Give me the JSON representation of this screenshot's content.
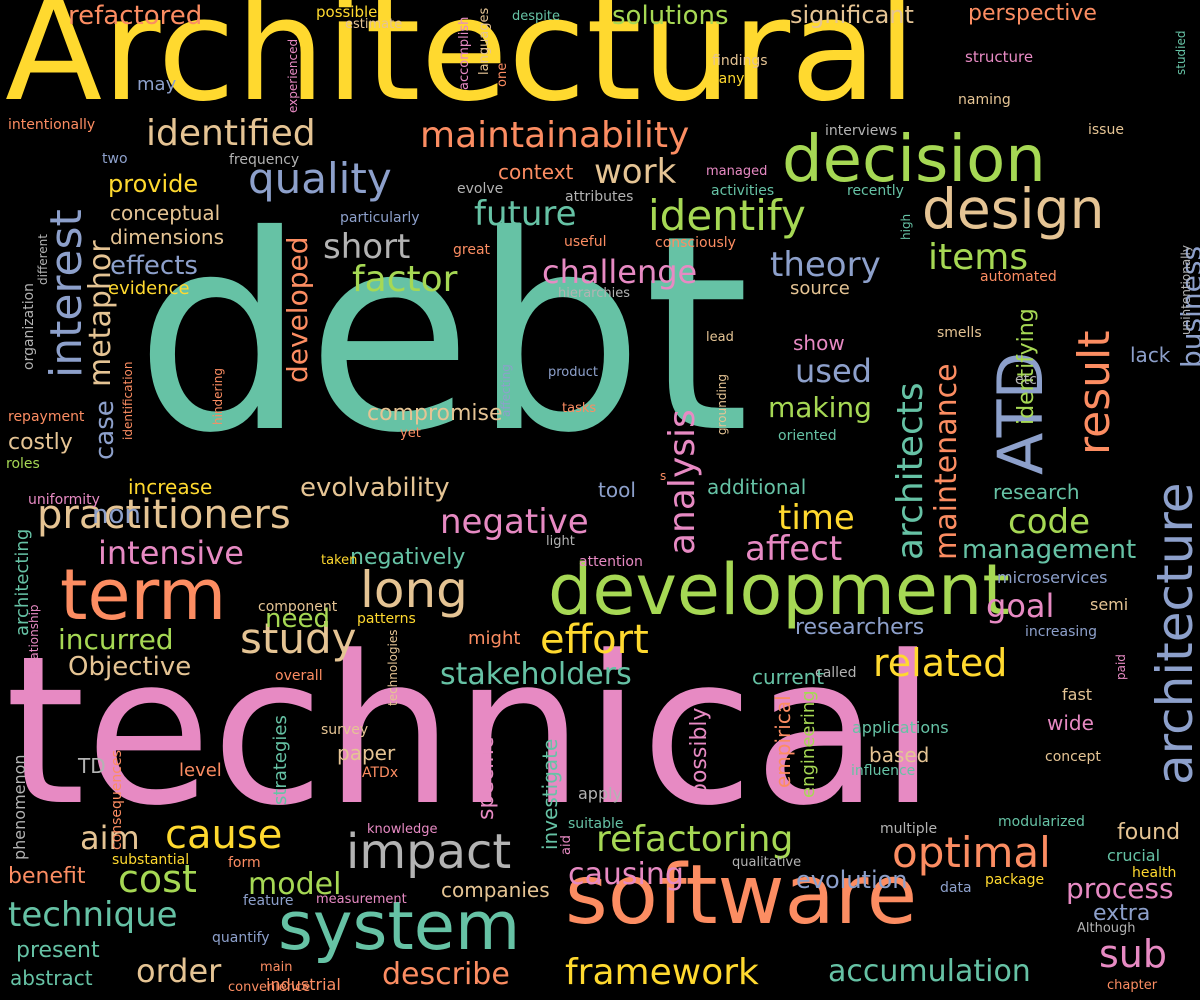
{
  "palette": {
    "teal": "#66c2a5",
    "orange": "#fc8d62",
    "blue": "#8da0cb",
    "pink": "#e78ac3",
    "green": "#a6d854",
    "yellow": "#ffd92f",
    "tan": "#e5c494",
    "gray": "#b3b3b3",
    "background": "#000000"
  },
  "words": [
    {
      "text": "debt",
      "color": "teal"
    },
    {
      "text": "technical",
      "color": "pink"
    },
    {
      "text": "Architectural",
      "color": "yellow"
    },
    {
      "text": "software",
      "color": "orange"
    },
    {
      "text": "development",
      "color": "green"
    },
    {
      "text": "decision",
      "color": "green"
    },
    {
      "text": "system",
      "color": "teal"
    },
    {
      "text": "ATD",
      "color": "blue"
    },
    {
      "text": "architecture",
      "color": "blue"
    },
    {
      "text": "design",
      "color": "tan"
    },
    {
      "text": "term",
      "color": "orange"
    },
    {
      "text": "impact",
      "color": "gray"
    },
    {
      "text": "practitioners",
      "color": "tan"
    },
    {
      "text": "interest",
      "color": "blue"
    },
    {
      "text": "result",
      "color": "orange"
    },
    {
      "text": "identify",
      "color": "green"
    },
    {
      "text": "quality",
      "color": "blue"
    },
    {
      "text": "optimal",
      "color": "orange"
    },
    {
      "text": "long",
      "color": "tan"
    },
    {
      "text": "cost",
      "color": "green"
    },
    {
      "text": "effort",
      "color": "yellow"
    },
    {
      "text": "study",
      "color": "tan"
    },
    {
      "text": "cause",
      "color": "yellow"
    },
    {
      "text": "architects",
      "color": "teal"
    },
    {
      "text": "maintenance",
      "color": "orange"
    },
    {
      "text": "analysis",
      "color": "pink"
    },
    {
      "text": "maintainability",
      "color": "orange"
    },
    {
      "text": "identified",
      "color": "tan"
    },
    {
      "text": "related",
      "color": "yellow"
    },
    {
      "text": "refactoring",
      "color": "green"
    },
    {
      "text": "framework",
      "color": "yellow"
    },
    {
      "text": "technique",
      "color": "teal"
    },
    {
      "text": "negative",
      "color": "pink"
    },
    {
      "text": "intensive",
      "color": "pink"
    },
    {
      "text": "affect",
      "color": "pink"
    },
    {
      "text": "items",
      "color": "green"
    },
    {
      "text": "theory",
      "color": "blue"
    },
    {
      "text": "short",
      "color": "gray"
    },
    {
      "text": "factor",
      "color": "green"
    },
    {
      "text": "challenge",
      "color": "pink"
    },
    {
      "text": "future",
      "color": "teal"
    },
    {
      "text": "work",
      "color": "tan"
    },
    {
      "text": "time",
      "color": "yellow"
    },
    {
      "text": "code",
      "color": "green"
    },
    {
      "text": "goal",
      "color": "pink"
    },
    {
      "text": "sub",
      "color": "pink"
    },
    {
      "text": "order",
      "color": "tan"
    },
    {
      "text": "aim",
      "color": "tan"
    },
    {
      "text": "model",
      "color": "green"
    },
    {
      "text": "describe",
      "color": "orange"
    },
    {
      "text": "accumulation",
      "color": "teal"
    },
    {
      "text": "stakeholders",
      "color": "teal"
    },
    {
      "text": "causing",
      "color": "pink"
    },
    {
      "text": "process",
      "color": "pink"
    },
    {
      "text": "evolution",
      "color": "blue"
    },
    {
      "text": "business",
      "color": "blue"
    },
    {
      "text": "metaphor",
      "color": "tan"
    },
    {
      "text": "case",
      "color": "blue"
    },
    {
      "text": "non",
      "color": "blue"
    },
    {
      "text": "used",
      "color": "blue"
    },
    {
      "text": "making",
      "color": "green"
    },
    {
      "text": "developed",
      "color": "orange"
    },
    {
      "text": "identifying",
      "color": "green"
    },
    {
      "text": "evolvability",
      "color": "tan"
    },
    {
      "text": "management",
      "color": "teal"
    },
    {
      "text": "researchers",
      "color": "blue"
    },
    {
      "text": "incurred",
      "color": "green"
    },
    {
      "text": "Objective",
      "color": "tan"
    },
    {
      "text": "need",
      "color": "green"
    },
    {
      "text": "negatively",
      "color": "teal"
    },
    {
      "text": "compromise",
      "color": "tan"
    },
    {
      "text": "effects",
      "color": "blue"
    },
    {
      "text": "provide",
      "color": "yellow"
    },
    {
      "text": "solutions",
      "color": "green"
    },
    {
      "text": "significant",
      "color": "tan"
    },
    {
      "text": "perspective",
      "color": "orange"
    },
    {
      "text": "refactored",
      "color": "orange"
    },
    {
      "text": "possibly",
      "color": "pink"
    },
    {
      "text": "investigate",
      "color": "teal"
    },
    {
      "text": "specific",
      "color": "pink"
    },
    {
      "text": "empirical",
      "color": "orange"
    },
    {
      "text": "engineering",
      "color": "green"
    },
    {
      "text": "found",
      "color": "tan"
    },
    {
      "text": "extra",
      "color": "blue"
    },
    {
      "text": "present",
      "color": "teal"
    },
    {
      "text": "abstract",
      "color": "teal"
    },
    {
      "text": "benefit",
      "color": "orange"
    },
    {
      "text": "companies",
      "color": "tan"
    },
    {
      "text": "conceptual",
      "color": "tan"
    },
    {
      "text": "dimensions",
      "color": "tan"
    },
    {
      "text": "evidence",
      "color": "yellow"
    },
    {
      "text": "costly",
      "color": "tan"
    },
    {
      "text": "increase",
      "color": "yellow"
    },
    {
      "text": "additional",
      "color": "teal"
    },
    {
      "text": "research",
      "color": "teal"
    },
    {
      "text": "tool",
      "color": "blue"
    },
    {
      "text": "lack",
      "color": "blue"
    },
    {
      "text": "source",
      "color": "tan"
    },
    {
      "text": "show",
      "color": "pink"
    },
    {
      "text": "context",
      "color": "orange"
    },
    {
      "text": "paper",
      "color": "tan"
    },
    {
      "text": "based",
      "color": "tan"
    },
    {
      "text": "wide",
      "color": "pink"
    },
    {
      "text": "level",
      "color": "orange"
    },
    {
      "text": "TD",
      "color": "gray"
    },
    {
      "text": "current",
      "color": "teal"
    },
    {
      "text": "strategies",
      "color": "teal"
    },
    {
      "text": "might",
      "color": "orange"
    },
    {
      "text": "applications",
      "color": "teal"
    },
    {
      "text": "influence",
      "color": "teal"
    },
    {
      "text": "concept",
      "color": "tan"
    },
    {
      "text": "microservices",
      "color": "blue"
    },
    {
      "text": "increasing",
      "color": "blue"
    },
    {
      "text": "semi",
      "color": "tan"
    },
    {
      "text": "fast",
      "color": "tan"
    },
    {
      "text": "called",
      "color": "gray"
    },
    {
      "text": "ATDx",
      "color": "orange"
    },
    {
      "text": "survey",
      "color": "tan"
    },
    {
      "text": "apply",
      "color": "gray"
    },
    {
      "text": "suitable",
      "color": "teal"
    },
    {
      "text": "knowledge",
      "color": "pink"
    },
    {
      "text": "multiple",
      "color": "gray"
    },
    {
      "text": "modularized",
      "color": "teal"
    },
    {
      "text": "crucial",
      "color": "teal"
    },
    {
      "text": "health",
      "color": "yellow"
    },
    {
      "text": "package",
      "color": "yellow"
    },
    {
      "text": "data",
      "color": "blue"
    },
    {
      "text": "qualitative",
      "color": "gray"
    },
    {
      "text": "substantial",
      "color": "yellow"
    },
    {
      "text": "form",
      "color": "orange"
    },
    {
      "text": "feature",
      "color": "blue"
    },
    {
      "text": "measurement",
      "color": "pink"
    },
    {
      "text": "quantify",
      "color": "blue"
    },
    {
      "text": "main",
      "color": "orange"
    },
    {
      "text": "convenience",
      "color": "orange"
    },
    {
      "text": "industrial",
      "color": "orange"
    },
    {
      "text": "Although",
      "color": "gray"
    },
    {
      "text": "chapter",
      "color": "orange"
    },
    {
      "text": "phenomenon",
      "color": "gray"
    },
    {
      "text": "consequences",
      "color": "orange"
    },
    {
      "text": "overall",
      "color": "orange"
    },
    {
      "text": "technologies",
      "color": "tan"
    },
    {
      "text": "patterns",
      "color": "yellow"
    },
    {
      "text": "component",
      "color": "tan"
    },
    {
      "text": "relationship",
      "color": "pink"
    },
    {
      "text": "architecting",
      "color": "teal"
    },
    {
      "text": "uniformity",
      "color": "pink"
    },
    {
      "text": "roles",
      "color": "green"
    },
    {
      "text": "repayment",
      "color": "orange"
    },
    {
      "text": "identification",
      "color": "orange"
    },
    {
      "text": "hindering",
      "color": "orange"
    },
    {
      "text": "yet",
      "color": "orange"
    },
    {
      "text": "tasks",
      "color": "orange"
    },
    {
      "text": "product",
      "color": "blue"
    },
    {
      "text": "affecting",
      "color": "blue"
    },
    {
      "text": "lead",
      "color": "tan"
    },
    {
      "text": "grounding",
      "color": "tan"
    },
    {
      "text": "oriented",
      "color": "teal"
    },
    {
      "text": "etc",
      "color": "gray"
    },
    {
      "text": "smells",
      "color": "tan"
    },
    {
      "text": "automated",
      "color": "orange"
    },
    {
      "text": "hierarchies",
      "color": "gray"
    },
    {
      "text": "useful",
      "color": "orange"
    },
    {
      "text": "consciously",
      "color": "orange"
    },
    {
      "text": "great",
      "color": "orange"
    },
    {
      "text": "particularly",
      "color": "blue"
    },
    {
      "text": "attributes",
      "color": "gray"
    },
    {
      "text": "activities",
      "color": "teal"
    },
    {
      "text": "recently",
      "color": "teal"
    },
    {
      "text": "high",
      "color": "teal"
    },
    {
      "text": "intentionally",
      "color": "orange"
    },
    {
      "text": "unintentionally",
      "color": "gray"
    },
    {
      "text": "evolve",
      "color": "gray"
    },
    {
      "text": "managed",
      "color": "pink"
    },
    {
      "text": "frequency",
      "color": "gray"
    },
    {
      "text": "two",
      "color": "blue"
    },
    {
      "text": "interviews",
      "color": "gray"
    },
    {
      "text": "issue",
      "color": "tan"
    },
    {
      "text": "naming",
      "color": "tan"
    },
    {
      "text": "structure",
      "color": "pink"
    },
    {
      "text": "studied",
      "color": "teal"
    },
    {
      "text": "findings",
      "color": "tan"
    },
    {
      "text": "many",
      "color": "yellow"
    },
    {
      "text": "despite",
      "color": "teal"
    },
    {
      "text": "languages",
      "color": "tan"
    },
    {
      "text": "accomplish",
      "color": "pink"
    },
    {
      "text": "one",
      "color": "orange"
    },
    {
      "text": "estimate",
      "color": "tan"
    },
    {
      "text": "possible",
      "color": "yellow"
    },
    {
      "text": "experienced",
      "color": "pink"
    },
    {
      "text": "may",
      "color": "blue"
    },
    {
      "text": "organization",
      "color": "gray"
    },
    {
      "text": "different",
      "color": "gray"
    },
    {
      "text": "taken",
      "color": "yellow"
    },
    {
      "text": "light",
      "color": "gray"
    },
    {
      "text": "attention",
      "color": "pink"
    },
    {
      "text": "aid",
      "color": "pink"
    },
    {
      "text": "paid",
      "color": "pink"
    },
    {
      "text": "s",
      "color": "orange"
    }
  ]
}
